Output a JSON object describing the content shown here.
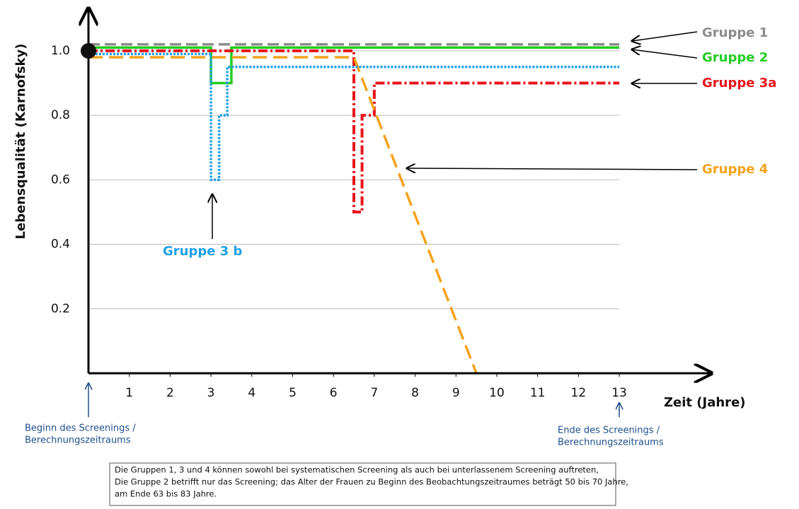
{
  "chart_data": {
    "type": "line",
    "y_label": "Lebensqualität (Karnofsky)",
    "x_label": "Zeit (Jahre)",
    "xlim": [
      0,
      15.2
    ],
    "ylim": [
      0,
      1.14
    ],
    "xticks": [
      1,
      2,
      3,
      4,
      5,
      6,
      7,
      8,
      9,
      10,
      11,
      12,
      13
    ],
    "yticks": [
      0.2,
      0.4,
      0.6,
      0.8,
      {
        "value": 1,
        "label": "1.0"
      }
    ],
    "grid": true,
    "series": [
      {
        "name": "Gruppe 1",
        "color": "#8c8c8c",
        "x": [
          0,
          13
        ],
        "values": [
          1.02,
          1.02
        ]
      },
      {
        "name": "Gruppe 2",
        "color": "#22cc22",
        "x": [
          0,
          3,
          3,
          3.5,
          3.5,
          13
        ],
        "values": [
          1.01,
          1.01,
          0.9,
          0.9,
          1.01,
          1.01
        ]
      },
      {
        "name": "Gruppe 3a",
        "color": "#e8141b",
        "x": [
          0,
          6.5,
          6.5,
          6.7,
          6.7,
          7,
          7,
          13
        ],
        "values": [
          1.0,
          1.0,
          0.5,
          0.5,
          0.8,
          0.8,
          0.9,
          0.9
        ]
      },
      {
        "name": "Gruppe 4",
        "color": "#f5a21a",
        "x": [
          0,
          6.5,
          9.5
        ],
        "values": [
          0.98,
          0.98,
          0
        ]
      },
      {
        "name": "Gruppe 3 b",
        "color": "#1ea0e6",
        "x": [
          0,
          3,
          3,
          3.2,
          3.2,
          3.4,
          3.4,
          13
        ],
        "values": [
          0.99,
          0.99,
          0.6,
          0.6,
          0.8,
          0.8,
          0.95,
          0.95
        ]
      }
    ],
    "annotations": [
      "Beginn des Screenings /",
      "Berechnungszeitraums",
      "Ende des Screenings /",
      "Berechnungszeitraums"
    ],
    "note": [
      "Die Gruppen 1, 3 und 4 können sowohl bei systematischen Screening als auch bei unterlassenem Screening auftreten,",
      "Die Gruppe 2 betrifft nur das Screening; das Alter der Frauen zu Beginn des Beobachtungszeitraumes beträgt 50 bis 70 Jahre,",
      "am Ende 63 bis 83 Jahre."
    ]
  }
}
